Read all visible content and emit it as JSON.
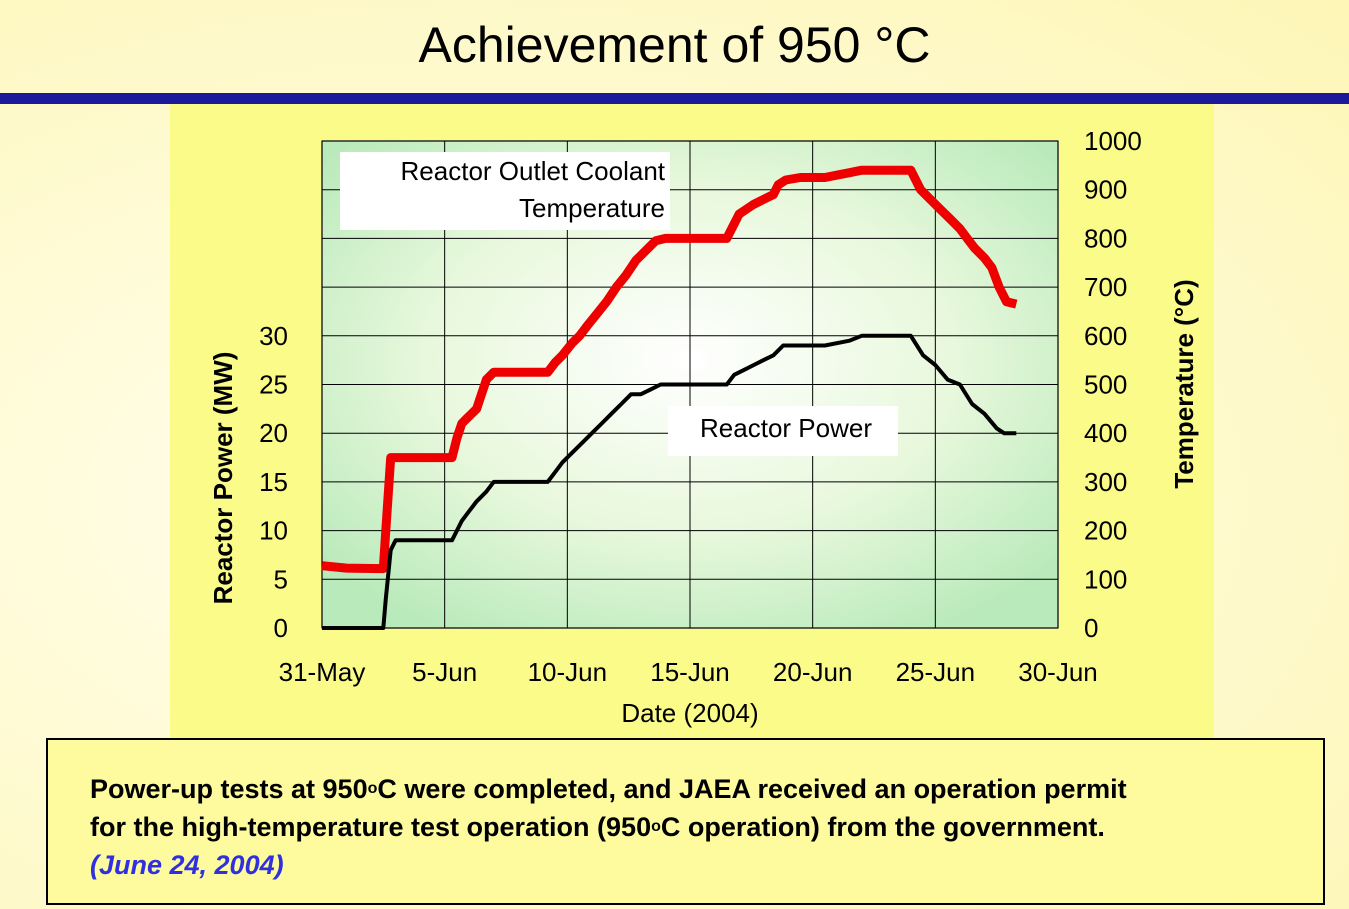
{
  "slide": {
    "title": "Achievement of 950 °C"
  },
  "note": {
    "line1_pre": "Power-up tests at 950",
    "sup1": "o",
    "line1_post": "C were completed, and JAEA received an operation permit",
    "line2_pre": "for the high-temperature test operation (950",
    "sup2": "o",
    "line2_post": "C operation) from the government.",
    "date": "(June 24, 2004)"
  },
  "chart_data": {
    "type": "line",
    "xlabel": "Date (2004)",
    "ylabel_left": "Reactor Power (MW)",
    "ylabel_right": "Temperature (°C)",
    "x_ticks": [
      "31-May",
      "5-Jun",
      "10-Jun",
      "15-Jun",
      "20-Jun",
      "25-Jun",
      "30-Jun"
    ],
    "x_tick_days": [
      0,
      5,
      10,
      15,
      20,
      25,
      30
    ],
    "xlim_days": [
      0,
      30
    ],
    "ylim_left": [
      0,
      50
    ],
    "ylim_right": [
      0,
      1000
    ],
    "left_ticks": [
      0,
      5,
      10,
      15,
      20,
      25,
      30
    ],
    "right_ticks": [
      0,
      100,
      200,
      300,
      400,
      500,
      600,
      700,
      800,
      900,
      1000
    ],
    "grid": true,
    "colors": {
      "temperature": "#ee0000",
      "power": "#000000"
    },
    "series": [
      {
        "name": "Reactor Outlet Coolant Temperature",
        "label_line1": "Reactor Outlet Coolant",
        "label_line2": "Temperature",
        "axis": "right",
        "x_days": [
          0,
          1,
          2.5,
          2.6,
          2.8,
          5.3,
          5.5,
          5.7,
          5.9,
          6.1,
          6.3,
          6.5,
          6.7,
          7.0,
          9.2,
          9.5,
          9.8,
          10.2,
          10.5,
          10.8,
          11.2,
          11.6,
          12.0,
          12.4,
          12.8,
          13.2,
          13.6,
          14.0,
          16.5,
          16.7,
          17.0,
          17.3,
          17.6,
          18.0,
          18.4,
          18.6,
          18.9,
          19.5,
          20.5,
          21.0,
          21.5,
          22.0,
          23.0,
          24.0,
          24.4,
          24.8,
          25.2,
          25.6,
          26.0,
          26.3,
          26.6,
          27.0,
          27.3,
          27.6,
          27.9,
          28.3
        ],
        "y": [
          128,
          123,
          122,
          200,
          350,
          350,
          390,
          420,
          430,
          440,
          450,
          480,
          510,
          525,
          525,
          545,
          560,
          585,
          600,
          620,
          645,
          670,
          700,
          725,
          755,
          775,
          795,
          800,
          800,
          820,
          850,
          860,
          870,
          880,
          890,
          910,
          920,
          925,
          925,
          930,
          935,
          940,
          940,
          940,
          900,
          880,
          860,
          840,
          820,
          800,
          780,
          760,
          740,
          700,
          670,
          665
        ]
      },
      {
        "name": "Reactor Power",
        "axis": "left",
        "x_days": [
          0,
          2.5,
          2.6,
          2.8,
          3.0,
          5.3,
          5.5,
          5.7,
          6.0,
          6.3,
          6.7,
          7.0,
          9.2,
          9.5,
          9.8,
          10.2,
          10.6,
          11.0,
          11.4,
          11.8,
          12.2,
          12.6,
          13.0,
          13.4,
          13.8,
          14.2,
          16.5,
          16.8,
          17.2,
          17.6,
          18.0,
          18.4,
          18.8,
          20.5,
          21.5,
          22.0,
          23.0,
          24.0,
          24.5,
          25.0,
          25.5,
          26.0,
          26.5,
          27.0,
          27.5,
          27.8,
          28.3
        ],
        "y": [
          0,
          0,
          3,
          8,
          9,
          9,
          10,
          11,
          12,
          13,
          14,
          15,
          15,
          16,
          17,
          18,
          19,
          20,
          21,
          22,
          23,
          24,
          24,
          24.5,
          25,
          25,
          25,
          26,
          26.5,
          27,
          27.5,
          28,
          29,
          29,
          29.5,
          30,
          30,
          30,
          28,
          27,
          25.5,
          25,
          23,
          22,
          20.5,
          20,
          20
        ]
      }
    ]
  }
}
